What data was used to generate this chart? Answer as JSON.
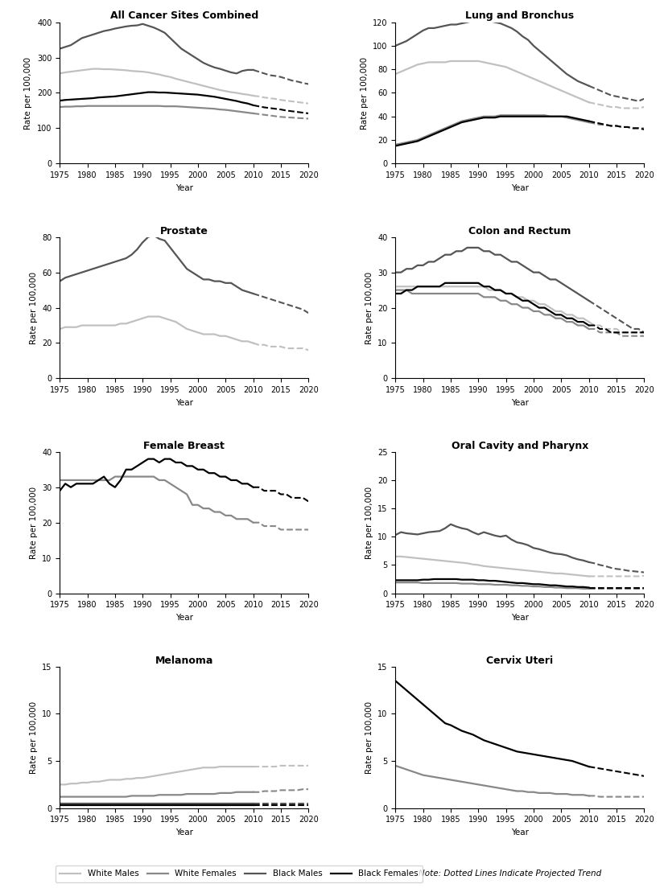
{
  "years_solid": [
    1975,
    1976,
    1977,
    1978,
    1979,
    1980,
    1981,
    1982,
    1983,
    1984,
    1985,
    1986,
    1987,
    1988,
    1989,
    1990,
    1991,
    1992,
    1993,
    1994,
    1995,
    1996,
    1997,
    1998,
    1999,
    2000,
    2001,
    2002,
    2003,
    2004,
    2005,
    2006,
    2007,
    2008,
    2009,
    2010
  ],
  "years_dashed": [
    2010,
    2011,
    2012,
    2013,
    2014,
    2015,
    2016,
    2017,
    2018,
    2019,
    2020
  ],
  "all_cancer": {
    "black_males_solid": [
      325,
      330,
      335,
      345,
      355,
      360,
      365,
      370,
      375,
      378,
      382,
      385,
      388,
      390,
      391,
      395,
      390,
      385,
      378,
      370,
      355,
      340,
      325,
      315,
      305,
      295,
      285,
      278,
      272,
      268,
      263,
      258,
      255,
      262,
      265,
      265
    ],
    "black_males_dashed": [
      265,
      260,
      255,
      250,
      248,
      245,
      240,
      235,
      232,
      228,
      225
    ],
    "white_males_solid": [
      255,
      258,
      260,
      262,
      264,
      266,
      268,
      268,
      267,
      267,
      266,
      265,
      264,
      262,
      261,
      260,
      258,
      255,
      252,
      248,
      245,
      240,
      236,
      232,
      228,
      224,
      220,
      216,
      212,
      208,
      205,
      202,
      200,
      197,
      195,
      192
    ],
    "white_males_dashed": [
      192,
      190,
      187,
      185,
      183,
      180,
      178,
      176,
      174,
      172,
      170
    ],
    "black_females_solid": [
      178,
      180,
      181,
      182,
      183,
      184,
      185,
      187,
      188,
      189,
      190,
      192,
      194,
      196,
      198,
      200,
      202,
      202,
      201,
      201,
      200,
      199,
      198,
      197,
      196,
      195,
      193,
      191,
      189,
      186,
      183,
      180,
      177,
      173,
      170,
      165
    ],
    "black_females_dashed": [
      165,
      162,
      159,
      157,
      155,
      153,
      150,
      148,
      146,
      144,
      142
    ],
    "white_females_solid": [
      160,
      161,
      161,
      162,
      162,
      163,
      163,
      163,
      163,
      163,
      163,
      163,
      163,
      163,
      163,
      163,
      163,
      163,
      163,
      162,
      162,
      162,
      161,
      160,
      159,
      158,
      157,
      156,
      155,
      153,
      152,
      150,
      148,
      146,
      144,
      142
    ],
    "white_females_dashed": [
      142,
      140,
      138,
      136,
      134,
      132,
      131,
      130,
      129,
      128,
      127
    ]
  },
  "lung": {
    "black_males_solid": [
      100,
      102,
      104,
      107,
      110,
      113,
      115,
      115,
      116,
      117,
      118,
      118,
      119,
      120,
      121,
      122,
      122,
      121,
      120,
      119,
      117,
      115,
      112,
      108,
      105,
      100,
      96,
      92,
      88,
      84,
      80,
      76,
      73,
      70,
      68,
      66
    ],
    "black_males_dashed": [
      66,
      64,
      62,
      60,
      58,
      57,
      56,
      55,
      54,
      53,
      55
    ],
    "white_males_solid": [
      76,
      78,
      80,
      82,
      84,
      85,
      86,
      86,
      86,
      86,
      87,
      87,
      87,
      87,
      87,
      87,
      86,
      85,
      84,
      83,
      82,
      80,
      78,
      76,
      74,
      72,
      70,
      68,
      66,
      64,
      62,
      60,
      58,
      56,
      54,
      52
    ],
    "white_males_dashed": [
      52,
      51,
      50,
      49,
      48,
      48,
      47,
      47,
      47,
      47,
      48
    ],
    "black_females_solid": [
      15,
      16,
      17,
      18,
      19,
      21,
      23,
      25,
      27,
      29,
      31,
      33,
      35,
      36,
      37,
      38,
      39,
      39,
      39,
      40,
      40,
      40,
      40,
      40,
      40,
      40,
      40,
      40,
      40,
      40,
      40,
      40,
      39,
      38,
      37,
      36
    ],
    "black_females_dashed": [
      36,
      35,
      34,
      33,
      32,
      32,
      31,
      31,
      30,
      30,
      29
    ],
    "white_females_solid": [
      16,
      17,
      18,
      19,
      20,
      22,
      24,
      26,
      28,
      30,
      32,
      34,
      36,
      37,
      38,
      39,
      40,
      40,
      40,
      41,
      41,
      41,
      41,
      41,
      41,
      41,
      41,
      41,
      40,
      40,
      40,
      39,
      38,
      37,
      36,
      35
    ],
    "white_females_dashed": [
      35,
      34,
      33,
      33,
      32,
      32,
      31,
      31,
      30,
      30,
      30
    ]
  },
  "prostate": {
    "black_males_solid": [
      55,
      57,
      58,
      59,
      60,
      61,
      62,
      63,
      64,
      65,
      66,
      67,
      68,
      70,
      73,
      77,
      80,
      81,
      79,
      78,
      74,
      70,
      66,
      62,
      60,
      58,
      56,
      56,
      55,
      55,
      54,
      54,
      52,
      50,
      49,
      48
    ],
    "black_males_dashed": [
      48,
      47,
      46,
      45,
      44,
      43,
      42,
      41,
      40,
      39,
      37
    ],
    "white_males_solid": [
      28,
      29,
      29,
      29,
      30,
      30,
      30,
      30,
      30,
      30,
      30,
      31,
      31,
      32,
      33,
      34,
      35,
      35,
      35,
      34,
      33,
      32,
      30,
      28,
      27,
      26,
      25,
      25,
      25,
      24,
      24,
      23,
      22,
      21,
      21,
      20
    ],
    "white_males_dashed": [
      20,
      19,
      19,
      18,
      18,
      18,
      17,
      17,
      17,
      17,
      16
    ],
    "black_females_solid": null,
    "white_females_solid": null,
    "black_females_dashed": null,
    "white_females_dashed": null
  },
  "colon": {
    "black_males_solid": [
      30,
      30,
      31,
      31,
      32,
      32,
      33,
      33,
      34,
      35,
      35,
      36,
      36,
      37,
      37,
      37,
      36,
      36,
      35,
      35,
      34,
      33,
      33,
      32,
      31,
      30,
      30,
      29,
      28,
      28,
      27,
      26,
      25,
      24,
      23,
      22
    ],
    "black_males_dashed": [
      22,
      21,
      20,
      19,
      18,
      17,
      16,
      15,
      14,
      14,
      13
    ],
    "white_males_solid": [
      26,
      26,
      26,
      26,
      26,
      26,
      26,
      26,
      26,
      26,
      26,
      26,
      26,
      26,
      26,
      26,
      26,
      25,
      25,
      25,
      24,
      24,
      23,
      23,
      22,
      22,
      21,
      21,
      20,
      19,
      19,
      18,
      18,
      17,
      17,
      16
    ],
    "white_males_dashed": [
      16,
      15,
      15,
      14,
      14,
      14,
      13,
      13,
      13,
      13,
      13
    ],
    "black_females_solid": [
      24,
      24,
      25,
      25,
      26,
      26,
      26,
      26,
      26,
      27,
      27,
      27,
      27,
      27,
      27,
      27,
      26,
      26,
      25,
      25,
      24,
      24,
      23,
      22,
      22,
      21,
      20,
      20,
      19,
      18,
      18,
      17,
      17,
      16,
      16,
      15
    ],
    "black_females_dashed": [
      15,
      15,
      14,
      14,
      13,
      13,
      13,
      13,
      13,
      13,
      13
    ],
    "white_females_solid": [
      25,
      25,
      25,
      24,
      24,
      24,
      24,
      24,
      24,
      24,
      24,
      24,
      24,
      24,
      24,
      24,
      23,
      23,
      23,
      22,
      22,
      21,
      21,
      20,
      20,
      19,
      19,
      18,
      18,
      17,
      17,
      16,
      16,
      15,
      15,
      14
    ],
    "white_females_dashed": [
      14,
      14,
      13,
      13,
      13,
      13,
      12,
      12,
      12,
      12,
      12
    ]
  },
  "breast": {
    "black_females_solid": [
      29,
      31,
      30,
      31,
      31,
      31,
      31,
      32,
      33,
      31,
      30,
      32,
      35,
      35,
      36,
      37,
      38,
      38,
      37,
      38,
      38,
      37,
      37,
      36,
      36,
      35,
      35,
      34,
      34,
      33,
      33,
      32,
      32,
      31,
      31,
      30
    ],
    "black_females_dashed": [
      30,
      30,
      29,
      29,
      29,
      28,
      28,
      27,
      27,
      27,
      26
    ],
    "white_females_solid": [
      32,
      32,
      32,
      32,
      32,
      32,
      32,
      32,
      32,
      32,
      33,
      33,
      33,
      33,
      33,
      33,
      33,
      33,
      32,
      32,
      31,
      30,
      29,
      28,
      25,
      25,
      24,
      24,
      23,
      23,
      22,
      22,
      21,
      21,
      21,
      20
    ],
    "white_females_dashed": [
      20,
      20,
      19,
      19,
      19,
      18,
      18,
      18,
      18,
      18,
      18
    ],
    "black_males_solid": null,
    "white_males_solid": null,
    "black_males_dashed": null,
    "white_males_dashed": null
  },
  "oral": {
    "black_males_solid": [
      10.3,
      10.8,
      10.6,
      10.5,
      10.4,
      10.6,
      10.8,
      10.9,
      11.0,
      11.5,
      12.2,
      11.8,
      11.5,
      11.3,
      10.8,
      10.4,
      10.8,
      10.5,
      10.2,
      10.0,
      10.2,
      9.5,
      9.0,
      8.8,
      8.5,
      8.0,
      7.8,
      7.5,
      7.2,
      7.0,
      6.9,
      6.7,
      6.3,
      6.0,
      5.8,
      5.5
    ],
    "black_males_dashed": [
      5.5,
      5.3,
      5.0,
      4.8,
      4.5,
      4.3,
      4.2,
      4.0,
      3.9,
      3.8,
      3.7
    ],
    "white_males_solid": [
      6.5,
      6.5,
      6.4,
      6.3,
      6.2,
      6.1,
      6.0,
      5.9,
      5.8,
      5.7,
      5.6,
      5.5,
      5.4,
      5.3,
      5.1,
      5.0,
      4.8,
      4.7,
      4.6,
      4.5,
      4.4,
      4.3,
      4.2,
      4.1,
      4.0,
      3.9,
      3.8,
      3.7,
      3.6,
      3.5,
      3.5,
      3.4,
      3.3,
      3.2,
      3.1,
      3.0
    ],
    "white_males_dashed": [
      3.0,
      3.0,
      3.0,
      3.0,
      3.0,
      3.0,
      3.0,
      3.0,
      3.0,
      3.0,
      3.1
    ],
    "black_females_solid": [
      2.3,
      2.3,
      2.3,
      2.3,
      2.3,
      2.4,
      2.4,
      2.5,
      2.5,
      2.5,
      2.5,
      2.5,
      2.4,
      2.4,
      2.4,
      2.3,
      2.3,
      2.2,
      2.2,
      2.1,
      2.0,
      1.9,
      1.8,
      1.8,
      1.7,
      1.6,
      1.6,
      1.5,
      1.4,
      1.4,
      1.3,
      1.2,
      1.2,
      1.1,
      1.1,
      1.0
    ],
    "black_females_dashed": [
      1.0,
      1.0,
      1.0,
      1.0,
      1.0,
      1.0,
      1.0,
      1.0,
      1.0,
      1.0,
      1.0
    ],
    "white_females_solid": [
      1.9,
      1.9,
      1.9,
      1.9,
      1.9,
      1.8,
      1.8,
      1.8,
      1.8,
      1.8,
      1.8,
      1.8,
      1.7,
      1.7,
      1.7,
      1.6,
      1.6,
      1.6,
      1.5,
      1.5,
      1.5,
      1.4,
      1.4,
      1.3,
      1.3,
      1.2,
      1.2,
      1.1,
      1.1,
      1.0,
      1.0,
      0.9,
      0.9,
      0.9,
      0.8,
      0.8
    ],
    "white_females_dashed": [
      0.8,
      0.8,
      0.8,
      0.8,
      0.8,
      0.8,
      0.8,
      0.8,
      0.8,
      0.8,
      0.8
    ]
  },
  "melanoma": {
    "white_males_solid": [
      2.5,
      2.5,
      2.6,
      2.6,
      2.7,
      2.7,
      2.8,
      2.8,
      2.9,
      3.0,
      3.0,
      3.0,
      3.1,
      3.1,
      3.2,
      3.2,
      3.3,
      3.4,
      3.5,
      3.6,
      3.7,
      3.8,
      3.9,
      4.0,
      4.1,
      4.2,
      4.3,
      4.3,
      4.3,
      4.4,
      4.4,
      4.4,
      4.4,
      4.4,
      4.4,
      4.4
    ],
    "white_males_dashed": [
      4.4,
      4.4,
      4.4,
      4.4,
      4.4,
      4.5,
      4.5,
      4.5,
      4.5,
      4.5,
      4.5
    ],
    "white_females_solid": [
      1.2,
      1.2,
      1.2,
      1.2,
      1.2,
      1.2,
      1.2,
      1.2,
      1.2,
      1.2,
      1.2,
      1.2,
      1.2,
      1.3,
      1.3,
      1.3,
      1.3,
      1.3,
      1.4,
      1.4,
      1.4,
      1.4,
      1.4,
      1.5,
      1.5,
      1.5,
      1.5,
      1.5,
      1.5,
      1.6,
      1.6,
      1.6,
      1.7,
      1.7,
      1.7,
      1.7
    ],
    "white_females_dashed": [
      1.7,
      1.7,
      1.8,
      1.8,
      1.8,
      1.9,
      1.9,
      1.9,
      1.9,
      2.0,
      2.0
    ],
    "black_males_solid": [
      0.5,
      0.5,
      0.5,
      0.5,
      0.5,
      0.5,
      0.5,
      0.5,
      0.5,
      0.5,
      0.5,
      0.5,
      0.5,
      0.5,
      0.5,
      0.5,
      0.5,
      0.5,
      0.5,
      0.5,
      0.5,
      0.5,
      0.5,
      0.5,
      0.5,
      0.5,
      0.5,
      0.5,
      0.5,
      0.5,
      0.5,
      0.5,
      0.5,
      0.5,
      0.5,
      0.5
    ],
    "black_males_dashed": [
      0.5,
      0.5,
      0.5,
      0.5,
      0.5,
      0.5,
      0.5,
      0.5,
      0.5,
      0.5,
      0.5
    ],
    "black_females_solid": [
      0.3,
      0.3,
      0.3,
      0.3,
      0.3,
      0.3,
      0.3,
      0.3,
      0.3,
      0.3,
      0.3,
      0.3,
      0.3,
      0.3,
      0.3,
      0.3,
      0.3,
      0.3,
      0.3,
      0.3,
      0.3,
      0.3,
      0.3,
      0.3,
      0.3,
      0.3,
      0.3,
      0.3,
      0.3,
      0.3,
      0.3,
      0.3,
      0.3,
      0.3,
      0.3,
      0.3
    ],
    "black_females_dashed": [
      0.3,
      0.3,
      0.3,
      0.3,
      0.3,
      0.3,
      0.3,
      0.3,
      0.3,
      0.3,
      0.3
    ]
  },
  "cervix": {
    "black_females_solid": [
      13.5,
      13.0,
      12.5,
      12.0,
      11.5,
      11.0,
      10.5,
      10.0,
      9.5,
      9.0,
      8.8,
      8.5,
      8.2,
      8.0,
      7.8,
      7.5,
      7.2,
      7.0,
      6.8,
      6.6,
      6.4,
      6.2,
      6.0,
      5.9,
      5.8,
      5.7,
      5.6,
      5.5,
      5.4,
      5.3,
      5.2,
      5.1,
      5.0,
      4.8,
      4.6,
      4.4
    ],
    "black_females_dashed": [
      4.4,
      4.3,
      4.2,
      4.1,
      4.0,
      3.9,
      3.8,
      3.7,
      3.6,
      3.5,
      3.4
    ],
    "white_females_solid": [
      4.5,
      4.3,
      4.1,
      3.9,
      3.7,
      3.5,
      3.4,
      3.3,
      3.2,
      3.1,
      3.0,
      2.9,
      2.8,
      2.7,
      2.6,
      2.5,
      2.4,
      2.3,
      2.2,
      2.1,
      2.0,
      1.9,
      1.8,
      1.8,
      1.7,
      1.7,
      1.6,
      1.6,
      1.6,
      1.5,
      1.5,
      1.5,
      1.4,
      1.4,
      1.4,
      1.3
    ],
    "white_females_dashed": [
      1.3,
      1.3,
      1.2,
      1.2,
      1.2,
      1.2,
      1.2,
      1.2,
      1.2,
      1.2,
      1.2
    ],
    "black_males_solid": null,
    "white_males_solid": null,
    "black_males_dashed": null,
    "white_males_dashed": null
  },
  "colors": {
    "white_males": "#c0c0c0",
    "white_females": "#888888",
    "black_males": "#555555",
    "black_females": "#000000"
  },
  "linewidth": 1.6,
  "dashed_linewidth": 1.5
}
